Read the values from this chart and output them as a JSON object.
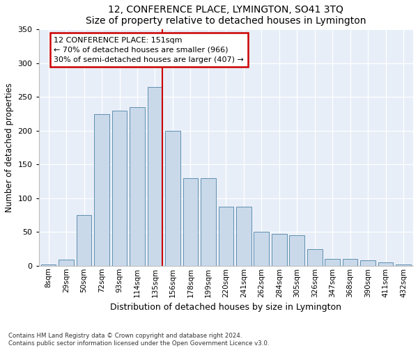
{
  "title": "12, CONFERENCE PLACE, LYMINGTON, SO41 3TQ",
  "subtitle": "Size of property relative to detached houses in Lymington",
  "xlabel": "Distribution of detached houses by size in Lymington",
  "ylabel": "Number of detached properties",
  "bar_labels": [
    "8sqm",
    "29sqm",
    "50sqm",
    "72sqm",
    "93sqm",
    "114sqm",
    "135sqm",
    "156sqm",
    "178sqm",
    "199sqm",
    "220sqm",
    "241sqm",
    "262sqm",
    "284sqm",
    "305sqm",
    "326sqm",
    "347sqm",
    "368sqm",
    "390sqm",
    "411sqm",
    "432sqm"
  ],
  "bar_heights": [
    2,
    9,
    75,
    225,
    230,
    235,
    265,
    200,
    130,
    130,
    87,
    87,
    50,
    47,
    45,
    25,
    10,
    10,
    8,
    5,
    2
  ],
  "bar_color": "#c9d9ea",
  "bar_edge_color": "#5f8fb0",
  "vline_color": "#cc0000",
  "annotation_title": "12 CONFERENCE PLACE: 151sqm",
  "annotation_line1": "← 70% of detached houses are smaller (966)",
  "annotation_line2": "30% of semi-detached houses are larger (407) →",
  "annotation_box_edge_color": "#cc0000",
  "annotation_bg": "#ffffff",
  "ylim": [
    0,
    350
  ],
  "yticks": [
    0,
    50,
    100,
    150,
    200,
    250,
    300,
    350
  ],
  "background_color": "#e8eef8",
  "footer_line1": "Contains HM Land Registry data © Crown copyright and database right 2024.",
  "footer_line2": "Contains public sector information licensed under the Open Government Licence v3.0."
}
